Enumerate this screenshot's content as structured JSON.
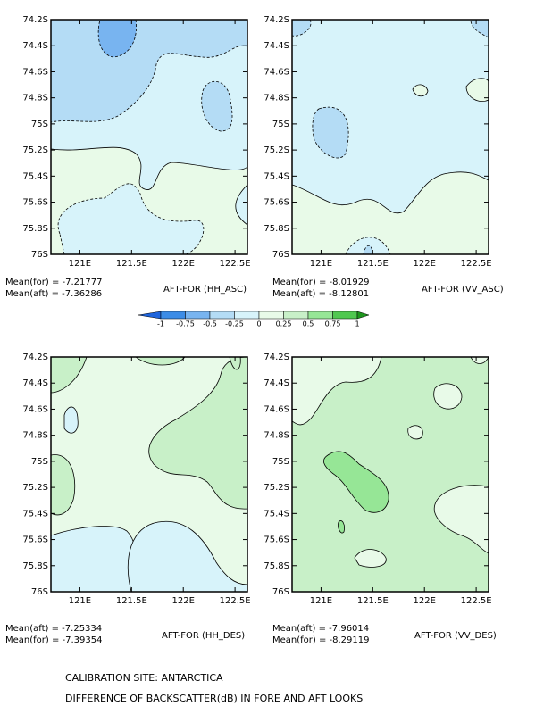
{
  "chart_data": [
    {
      "type": "contour",
      "title": "AFT-FOR (HH_ASC)",
      "stats": [
        "Mean(for) = -7.21777",
        "Mean(aft) = -7.36286"
      ],
      "xlim": [
        120.72,
        122.62
      ],
      "ylim": [
        -76,
        -74.2
      ],
      "xticks": [
        {
          "value": 121,
          "label": "121E"
        },
        {
          "value": 121.5,
          "label": "121.5E"
        },
        {
          "value": 122,
          "label": "122E"
        },
        {
          "value": 122.5,
          "label": "122.5E"
        }
      ],
      "yticks": [
        {
          "value": -74.2,
          "label": "74.2S"
        },
        {
          "value": -74.4,
          "label": "74.4S"
        },
        {
          "value": -74.6,
          "label": "74.6S"
        },
        {
          "value": -74.8,
          "label": "74.8S"
        },
        {
          "value": -75,
          "label": "75S"
        },
        {
          "value": -75.2,
          "label": "75.2S"
        },
        {
          "value": -75.4,
          "label": "75.4S"
        },
        {
          "value": -75.6,
          "label": "75.6S"
        },
        {
          "value": -75.8,
          "label": "75.8S"
        },
        {
          "value": -76,
          "label": "76S"
        }
      ]
    },
    {
      "type": "contour",
      "title": "AFT-FOR (VV_ASC)",
      "stats": [
        "Mean(for) = -8.01929",
        "Mean(aft) = -8.12801"
      ],
      "xlim": [
        120.72,
        122.62
      ],
      "ylim": [
        -76,
        -74.2
      ],
      "xticks": [
        {
          "value": 121,
          "label": "121E"
        },
        {
          "value": 121.5,
          "label": "121.5E"
        },
        {
          "value": 122,
          "label": "122E"
        },
        {
          "value": 122.5,
          "label": "122.5E"
        }
      ],
      "yticks": [
        {
          "value": -74.2,
          "label": "74.2S"
        },
        {
          "value": -74.4,
          "label": "74.4S"
        },
        {
          "value": -74.6,
          "label": "74.6S"
        },
        {
          "value": -74.8,
          "label": "74.8S"
        },
        {
          "value": -75,
          "label": "75S"
        },
        {
          "value": -75.2,
          "label": "75.2S"
        },
        {
          "value": -75.4,
          "label": "75.4S"
        },
        {
          "value": -75.6,
          "label": "75.6S"
        },
        {
          "value": -75.8,
          "label": "75.8S"
        },
        {
          "value": -76,
          "label": "76S"
        }
      ]
    },
    {
      "type": "contour",
      "title": "AFT-FOR (HH_DES)",
      "stats": [
        "Mean(aft) = -7.25334",
        "Mean(for) = -7.39354"
      ],
      "xlim": [
        120.72,
        122.62
      ],
      "ylim": [
        -76,
        -74.2
      ],
      "xticks": [
        {
          "value": 121,
          "label": "121E"
        },
        {
          "value": 121.5,
          "label": "121.5E"
        },
        {
          "value": 122,
          "label": "122E"
        },
        {
          "value": 122.5,
          "label": "122.5E"
        }
      ],
      "yticks": [
        {
          "value": -74.2,
          "label": "74.2S"
        },
        {
          "value": -74.4,
          "label": "74.4S"
        },
        {
          "value": -74.6,
          "label": "74.6S"
        },
        {
          "value": -74.8,
          "label": "74.8S"
        },
        {
          "value": -75,
          "label": "75S"
        },
        {
          "value": -75.2,
          "label": "75.2S"
        },
        {
          "value": -75.4,
          "label": "75.4S"
        },
        {
          "value": -75.6,
          "label": "75.6S"
        },
        {
          "value": -75.8,
          "label": "75.8S"
        },
        {
          "value": -76,
          "label": "76S"
        }
      ]
    },
    {
      "type": "contour",
      "title": "AFT-FOR (VV_DES)",
      "stats": [
        "Mean(aft) = -7.96014",
        "Mean(for) = -8.29119"
      ],
      "xlim": [
        120.72,
        122.62
      ],
      "ylim": [
        -76,
        -74.2
      ],
      "xticks": [
        {
          "value": 121,
          "label": "121E"
        },
        {
          "value": 121.5,
          "label": "121.5E"
        },
        {
          "value": 122,
          "label": "122E"
        },
        {
          "value": 122.5,
          "label": "122.5E"
        }
      ],
      "yticks": [
        {
          "value": -74.2,
          "label": "74.2S"
        },
        {
          "value": -74.4,
          "label": "74.4S"
        },
        {
          "value": -74.6,
          "label": "74.6S"
        },
        {
          "value": -74.8,
          "label": "74.8S"
        },
        {
          "value": -75,
          "label": "75S"
        },
        {
          "value": -75.2,
          "label": "75.2S"
        },
        {
          "value": -75.4,
          "label": "75.4S"
        },
        {
          "value": -75.6,
          "label": "75.6S"
        },
        {
          "value": -75.8,
          "label": "75.8S"
        },
        {
          "value": -76,
          "label": "76S"
        }
      ]
    }
  ],
  "colorbar": {
    "levels": [
      -1,
      -0.75,
      -0.5,
      -0.25,
      0,
      0.25,
      0.5,
      0.75,
      1
    ],
    "colors": [
      "#1e64dc",
      "#3c8ce6",
      "#78b4f0",
      "#b4dcf5",
      "#d7f3fa",
      "#e8fae8",
      "#c8f0c8",
      "#96e696",
      "#50c850",
      "#1e961e"
    ]
  },
  "footer": [
    "CALIBRATION SITE: ANTARCTICA",
    "DIFFERENCE OF BACKSCATTER(dB) IN FORE AND AFT LOOKS"
  ]
}
